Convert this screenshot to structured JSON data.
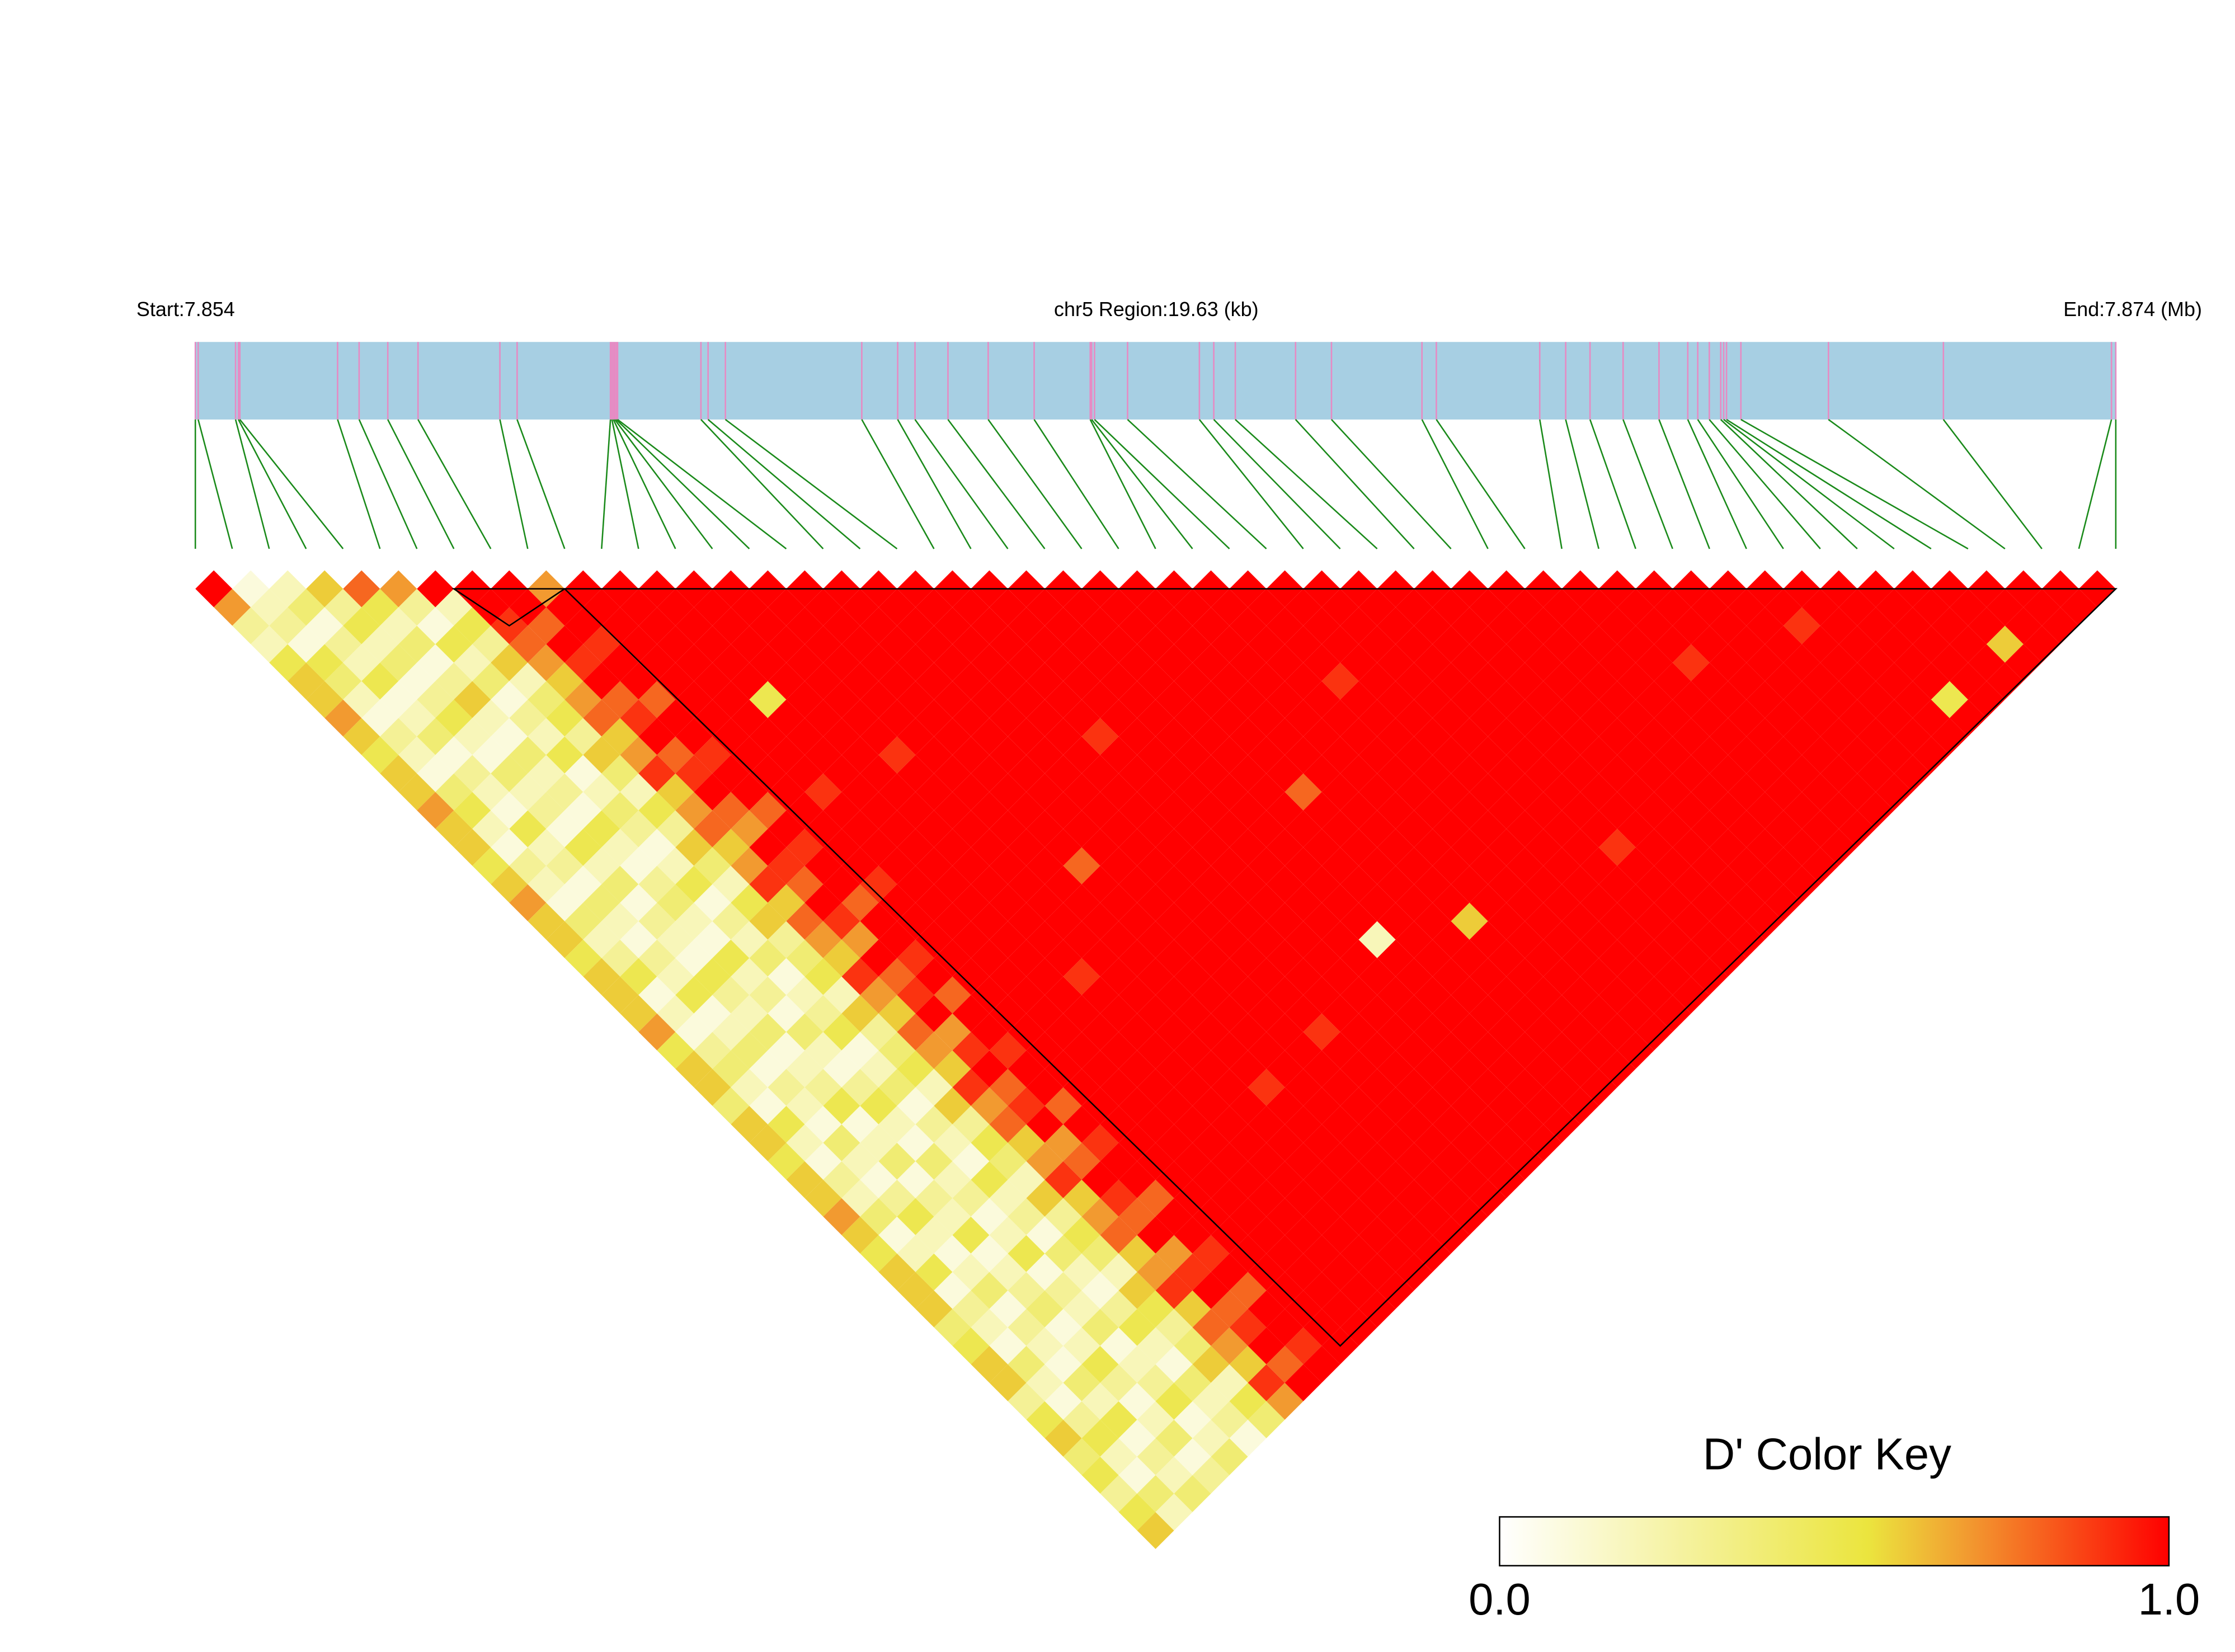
{
  "chart_data": {
    "type": "ld_heatmap",
    "start_label": "Start:7.854",
    "region_label": "chr5 Region:19.63 (kb)",
    "end_label": "End:7.874 (Mb)",
    "xlim": [
      7.854,
      7.87363
    ],
    "snp_positions": [
      7.854,
      7.854029,
      7.854411,
      7.85444,
      7.854455,
      7.855454,
      7.855674,
      7.855967,
      7.856276,
      7.857113,
      7.857289,
      7.858243,
      7.858258,
      7.858273,
      7.858287,
      7.858302,
      7.858316,
      7.859168,
      7.859241,
      7.859418,
      7.860812,
      7.861179,
      7.861356,
      7.861693,
      7.862104,
      7.862574,
      7.863147,
      7.863162,
      7.863191,
      7.863529,
      7.864263,
      7.86441,
      7.86463,
      7.865246,
      7.865613,
      7.866538,
      7.866685,
      7.867742,
      7.868007,
      7.868256,
      7.868594,
      7.868961,
      7.869255,
      7.869357,
      7.869475,
      7.869592,
      7.869622,
      7.869651,
      7.869798,
      7.870693,
      7.871868,
      7.873586,
      7.87363
    ],
    "ld": [
      [
        1,
        0.7,
        0.3,
        0.2,
        0.5,
        0.6,
        0.6,
        0.7,
        0.6,
        0.5,
        0.6,
        0.6,
        0.7,
        0.6,
        0.6,
        0.5,
        0.6,
        0.7,
        0.6,
        0.6,
        0.5,
        0.6,
        0.6,
        0.6,
        0.7,
        0.5,
        0.6,
        0.6,
        0.4,
        0.6,
        0.6,
        0.5,
        0.6,
        0.6,
        0.7,
        0.6,
        0.5,
        0.6,
        0.6,
        0.6,
        0.4,
        0.5,
        0.6,
        0.6,
        0.3,
        0.5,
        0.6,
        0.4,
        0.5,
        0.3,
        0.5,
        0.6
      ],
      [
        0.1,
        0.2,
        0.3,
        0.1,
        0.5,
        0.4,
        0.2,
        0.1,
        0.3,
        0.2,
        0.1,
        0.4,
        0.5,
        0.2,
        0.1,
        0.3,
        0.2,
        0.1,
        0.4,
        0.2,
        0.3,
        0.5,
        0.1,
        0.2,
        0.1,
        0.3,
        0.4,
        0.2,
        0.1,
        0.5,
        0.2,
        0.1,
        0.3,
        0.2,
        0.4,
        0.1,
        0.2,
        0.5,
        0.1,
        0.3,
        0.2,
        0.1,
        0.4,
        0.2,
        0.1,
        0.3,
        0.5,
        0.2,
        0.1,
        0.4,
        0.2
      ],
      [
        0.2,
        0.4,
        0.1,
        0.3,
        0.2,
        0.5,
        0.1,
        0.2,
        0.4,
        0.1,
        0.3,
        0.2,
        0.1,
        0.5,
        0.2,
        0.3,
        0.1,
        0.4,
        0.2,
        0.1,
        0.3,
        0.2,
        0.5,
        0.1,
        0.2,
        0.4,
        0.1,
        0.3,
        0.2,
        0.1,
        0.4,
        0.2,
        0.1,
        0.3,
        0.5,
        0.2,
        0.1,
        0.2,
        0.4,
        0.1,
        0.3,
        0.2,
        0.1,
        0.4,
        0.2,
        0.5,
        0.1,
        0.3,
        0.2,
        0.4
      ],
      [
        0.6,
        0.3,
        0.5,
        0.2,
        0.4,
        0.1,
        0.3,
        0.5,
        0.2,
        0.1,
        0.4,
        0.2,
        0.3,
        0.1,
        0.5,
        0.2,
        0.4,
        0.1,
        0.3,
        0.2,
        0.1,
        0.5,
        0.3,
        0.2,
        0.4,
        0.1,
        0.2,
        0.3,
        0.5,
        0.1,
        0.2,
        0.4,
        0.1,
        0.3,
        0.2,
        0.5,
        0.1,
        0.2,
        0.3,
        0.4,
        0.1,
        0.2,
        0.5,
        0.3,
        0.1,
        0.2,
        0.4,
        0.1,
        0.3
      ],
      [
        0.8,
        0.5,
        0.2,
        0.4,
        0.1,
        0.3,
        0.6,
        0.2,
        0.1,
        0.4,
        0.2,
        0.3,
        0.1,
        0.5,
        0.2,
        0.1,
        0.3,
        0.4,
        0.2,
        0.1,
        0.5,
        0.2,
        0.3,
        0.1,
        0.4,
        0.2,
        0.1,
        0.3,
        0.5,
        0.2,
        0.1,
        0.4,
        0.2,
        0.3,
        0.1,
        0.2,
        0.5,
        0.1,
        0.3,
        0.2,
        0.4,
        0.1,
        0.2,
        0.3,
        0.5,
        0.1,
        0.2,
        0.4
      ],
      [
        0.7,
        0.3,
        0.1,
        0.5,
        0.2,
        0.4,
        0.1,
        0.3,
        0.2,
        0.5,
        0.1,
        0.2,
        0.4,
        0.3,
        0.1,
        0.2,
        0.5,
        0.1,
        0.3,
        0.2,
        0.4,
        0.1,
        0.2,
        0.3,
        0.5,
        0.1,
        0.2,
        0.4,
        0.1,
        0.3,
        0.2,
        0.1,
        0.5,
        0.2,
        0.3,
        0.1,
        0.4,
        0.2,
        0.1,
        0.3,
        0.5,
        0.2,
        0.1,
        0.4,
        0.2,
        0.3,
        0.1
      ],
      [
        1,
        0.2,
        0.5,
        0.3,
        0.6,
        0.2,
        0.4,
        0.5,
        0.3,
        0.6,
        0.4,
        0.2,
        0.5,
        0.3,
        0.6,
        0.4,
        0.2,
        0.5,
        0.6,
        0.3,
        0.4,
        0.5,
        0.2,
        0.6,
        0.3,
        0.4,
        0.5,
        0.2,
        0.6,
        0.3,
        0.5,
        0.4,
        0.2,
        0.6,
        0.3,
        0.5,
        0.4,
        0.2,
        0.6,
        0.5,
        0.3,
        0.4,
        0.6,
        0.2,
        0.5,
        0.4
      ],
      [
        1,
        1,
        0.9,
        0.8,
        0.7,
        0.6,
        0.7,
        0.8,
        0.6,
        0.7,
        0.9,
        0.6,
        0.7,
        0.8,
        0.6,
        0.7,
        0.9,
        0.6,
        0.8,
        0.7,
        0.6,
        0.9,
        0.7,
        0.6,
        0.8,
        0.7,
        0.6,
        0.9,
        0.7,
        0.8,
        0.6,
        0.7,
        0.9,
        0.6,
        0.7,
        0.8,
        0.6,
        0.7,
        0.9,
        0.6,
        0.8,
        0.7,
        0.6,
        0.9,
        0.7
      ],
      [
        1,
        1,
        0.8,
        1,
        0.9,
        1,
        0.8,
        0.9,
        1,
        0.8,
        0.9,
        1,
        0.8,
        0.7,
        1,
        0.9,
        0.8,
        1,
        0.9,
        0.7,
        1,
        0.8,
        0.9,
        1,
        0.7,
        0.9,
        1,
        0.8,
        0.9,
        1,
        0.7,
        0.8,
        1,
        0.9,
        0.8,
        1,
        0.7,
        0.9,
        1,
        0.8,
        0.9,
        1,
        0.8,
        1
      ],
      [
        0.7,
        1,
        1,
        0.9,
        1,
        1,
        0.8,
        1,
        1,
        0.9,
        1,
        1,
        0.8,
        1,
        0.9,
        1,
        1,
        0.8,
        1,
        1,
        0.9,
        1,
        0.8,
        1,
        1,
        0.9,
        1,
        1,
        0.8,
        1,
        0.9,
        1,
        1,
        0.8,
        1,
        1,
        0.9,
        1,
        0.8,
        1,
        1,
        0.9,
        1
      ],
      [
        1,
        1,
        1,
        1,
        1,
        1,
        1,
        1,
        1,
        1,
        1,
        1,
        1,
        1,
        1,
        1,
        0.9,
        1,
        1,
        1,
        1,
        1,
        1,
        1,
        1,
        1,
        1,
        1,
        1,
        1,
        1,
        1,
        1,
        1,
        1,
        1,
        1,
        1,
        1,
        1,
        1,
        1
      ],
      [
        1,
        1,
        1,
        1,
        1,
        1,
        1,
        1,
        1,
        1,
        1,
        0.9,
        1,
        1,
        1,
        1,
        1,
        1,
        1,
        1,
        1,
        1,
        1,
        1,
        1,
        1,
        1,
        1,
        1,
        1,
        1,
        1,
        1,
        1,
        1,
        1,
        1,
        1,
        1,
        1,
        1
      ],
      [
        1,
        1,
        1,
        1,
        1,
        1,
        0.5,
        1,
        1,
        1,
        1,
        1,
        1,
        1,
        1,
        1,
        1,
        1,
        1,
        1,
        1,
        1,
        1,
        1,
        1,
        1,
        1,
        1,
        1,
        1,
        1,
        1,
        1,
        1,
        1,
        1,
        1,
        1,
        1,
        1
      ],
      [
        1,
        1,
        1,
        1,
        1,
        1,
        1,
        1,
        1,
        1,
        1,
        1,
        1,
        1,
        1,
        1,
        1,
        1,
        1,
        1,
        1,
        0.9,
        1,
        1,
        1,
        1,
        1,
        1,
        1,
        1,
        1,
        1,
        1,
        1,
        1,
        1,
        1,
        1,
        1
      ],
      [
        1,
        1,
        1,
        1,
        1,
        1,
        1,
        1,
        1,
        0.9,
        1,
        1,
        1,
        1,
        1,
        1,
        1,
        1,
        1,
        1,
        1,
        1,
        1,
        1,
        1,
        1,
        1,
        1,
        1,
        1,
        1,
        1,
        1,
        1,
        1,
        1,
        1,
        1
      ],
      [
        1,
        1,
        1,
        1,
        1,
        1,
        1,
        1,
        1,
        1,
        1,
        1,
        1,
        1,
        1,
        1,
        1,
        1,
        1,
        1,
        1,
        1,
        1,
        1,
        1,
        1,
        1,
        0.9,
        1,
        1,
        1,
        1,
        1,
        1,
        1,
        1,
        1
      ],
      [
        1,
        1,
        1,
        1,
        1,
        1,
        1,
        1,
        1,
        1,
        1,
        1,
        1,
        1,
        1,
        0.8,
        1,
        1,
        1,
        1,
        1,
        1,
        1,
        1,
        1,
        1,
        1,
        1,
        1,
        1,
        1,
        1,
        1,
        1,
        1,
        1
      ],
      [
        1,
        1,
        1,
        1,
        1,
        1,
        1,
        1,
        1,
        1,
        1,
        1,
        1,
        1,
        1,
        1,
        1,
        1,
        1,
        1,
        1,
        1,
        1,
        1,
        1,
        1,
        1,
        1,
        1,
        1,
        1,
        1,
        1,
        1,
        1
      ],
      [
        1,
        1,
        1,
        1,
        1,
        1,
        1,
        1,
        1,
        1,
        1,
        1,
        1,
        1,
        1,
        1,
        1,
        1,
        1,
        1,
        1,
        1,
        1,
        1,
        0.9,
        1,
        1,
        1,
        1,
        1,
        1,
        1,
        1,
        1
      ],
      [
        1,
        1,
        1,
        1,
        1,
        1,
        1,
        1,
        1,
        1,
        1,
        1,
        1,
        1,
        1,
        1,
        1,
        1,
        1,
        1,
        1,
        1,
        1,
        1,
        1,
        1,
        1,
        1,
        1,
        1,
        1,
        1,
        1
      ],
      [
        1,
        1,
        1,
        1,
        1,
        1,
        1,
        1,
        0.9,
        1,
        1,
        1,
        1,
        1,
        1,
        1,
        1,
        1,
        1,
        1,
        1,
        1,
        1,
        1,
        1,
        1,
        1,
        1,
        1,
        1,
        1,
        1
      ],
      [
        1,
        1,
        1,
        1,
        1,
        1,
        1,
        1,
        1,
        1,
        1,
        1,
        1,
        1,
        1,
        1,
        1,
        1,
        1,
        1,
        1,
        1,
        1,
        1,
        1,
        1,
        1,
        1,
        1,
        1,
        1
      ],
      [
        1,
        1,
        1,
        1,
        1,
        1,
        1,
        1,
        1,
        1,
        1,
        1,
        1,
        1,
        1,
        1,
        1,
        1,
        1,
        0.2,
        1,
        1,
        1,
        1,
        1,
        1,
        1,
        1,
        1,
        1
      ],
      [
        1,
        1,
        1,
        1,
        1,
        1,
        1,
        1,
        1,
        1,
        1,
        1,
        1,
        1,
        1,
        1,
        1,
        1,
        1,
        1,
        1,
        1,
        1,
        1,
        1,
        1,
        1,
        1,
        1
      ],
      [
        1,
        1,
        1,
        1,
        1,
        1,
        1,
        1,
        1,
        1,
        1,
        0.8,
        1,
        1,
        1,
        1,
        1,
        1,
        1,
        1,
        1,
        1,
        1,
        1,
        1,
        1,
        1,
        1
      ],
      [
        1,
        1,
        1,
        1,
        1,
        1,
        1,
        1,
        1,
        1,
        1,
        1,
        1,
        1,
        1,
        1,
        1,
        1,
        0.6,
        1,
        1,
        1,
        1,
        1,
        1,
        1,
        1
      ],
      [
        1,
        1,
        1,
        1,
        1,
        1,
        1,
        1,
        1,
        1,
        1,
        1,
        1,
        1,
        1,
        1,
        1,
        1,
        1,
        1,
        1,
        1,
        1,
        1,
        1,
        1
      ],
      [
        1,
        1,
        1,
        1,
        1,
        1,
        1,
        1,
        1,
        1,
        1,
        1,
        1,
        1,
        1,
        1,
        1,
        1,
        1,
        1,
        1,
        1,
        1,
        1,
        1
      ],
      [
        1,
        1,
        1,
        1,
        1,
        0.9,
        1,
        1,
        1,
        1,
        1,
        1,
        1,
        1,
        1,
        1,
        1,
        1,
        1,
        1,
        1,
        1,
        1,
        1
      ],
      [
        1,
        1,
        1,
        1,
        1,
        1,
        1,
        1,
        1,
        1,
        1,
        1,
        1,
        1,
        1,
        1,
        1,
        1,
        1,
        1,
        1,
        1,
        1
      ],
      [
        1,
        1,
        1,
        1,
        1,
        1,
        1,
        1,
        1,
        1,
        1,
        1,
        1,
        1,
        1,
        1,
        1,
        1,
        1,
        1,
        1,
        1
      ],
      [
        1,
        1,
        1,
        1,
        1,
        1,
        1,
        1,
        1,
        1,
        1,
        1,
        1,
        1,
        0.9,
        1,
        1,
        1,
        1,
        1,
        1
      ],
      [
        1,
        1,
        1,
        1,
        1,
        1,
        1,
        1,
        1,
        1,
        1,
        1,
        1,
        1,
        1,
        1,
        1,
        1,
        1,
        1
      ],
      [
        1,
        1,
        1,
        1,
        1,
        1,
        1,
        1,
        1,
        1,
        1,
        1,
        1,
        1,
        1,
        1,
        1,
        1,
        1
      ],
      [
        1,
        1,
        1,
        1,
        1,
        1,
        1,
        1,
        1,
        1,
        1,
        1,
        1,
        1,
        1,
        1,
        1,
        1
      ],
      [
        1,
        1,
        1,
        1,
        1,
        1,
        1,
        1,
        1,
        1,
        1,
        1,
        1,
        1,
        1,
        1,
        1
      ],
      [
        1,
        1,
        1,
        1,
        1,
        1,
        1,
        1,
        1,
        1,
        1,
        1,
        1,
        1,
        1,
        1
      ],
      [
        1,
        1,
        1,
        1,
        1,
        1,
        1,
        1,
        1,
        1,
        1,
        1,
        1,
        1,
        1
      ],
      [
        1,
        1,
        1,
        1,
        0.9,
        1,
        1,
        1,
        1,
        1,
        1,
        1,
        1,
        1
      ],
      [
        1,
        1,
        1,
        1,
        1,
        1,
        1,
        1,
        1,
        1,
        1,
        1,
        1
      ],
      [
        1,
        1,
        1,
        1,
        1,
        1,
        1,
        1,
        1,
        1,
        1,
        1
      ],
      [
        1,
        1,
        1,
        1,
        1,
        1,
        1,
        1,
        1,
        1,
        1
      ],
      [
        1,
        1,
        0.9,
        1,
        1,
        1,
        1,
        1,
        1,
        1
      ],
      [
        1,
        1,
        1,
        1,
        1,
        1,
        1,
        1,
        1
      ],
      [
        1,
        1,
        1,
        1,
        1,
        1,
        0.5,
        1
      ],
      [
        1,
        1,
        1,
        1,
        1,
        1,
        1
      ],
      [
        1,
        1,
        1,
        1,
        1,
        1
      ],
      [
        1,
        1,
        1,
        0.6,
        1
      ],
      [
        1,
        1,
        1,
        1
      ],
      [
        1,
        1,
        1
      ],
      [
        1,
        1
      ],
      [
        1
      ]
    ],
    "blocks": [
      [
        7,
        10
      ],
      [
        10,
        52
      ]
    ],
    "key_title": "D' Color Key",
    "key_ticks": [
      {
        "value": 0,
        "label": "0.0"
      },
      {
        "value": 1,
        "label": "1.0"
      }
    ],
    "color_stops": [
      {
        "value": 0,
        "color": "#ffffff"
      },
      {
        "value": 0.55,
        "color": "#ebe53e"
      },
      {
        "value": 0.7,
        "color": "#f29a30"
      },
      {
        "value": 1,
        "color": "#ff0000"
      }
    ]
  }
}
